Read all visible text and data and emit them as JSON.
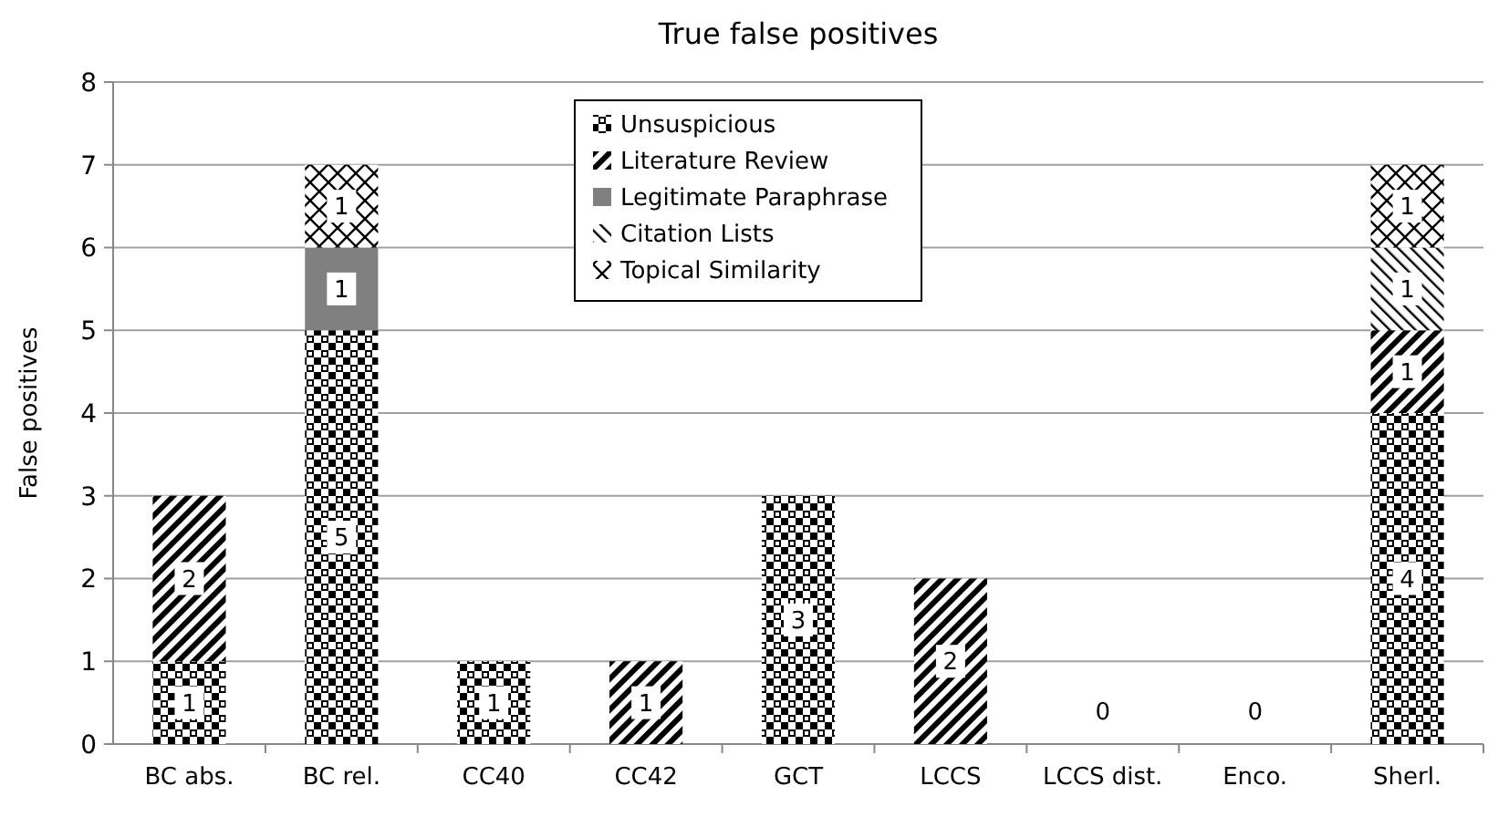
{
  "chart_data": {
    "type": "bar",
    "title": "True false positives",
    "ylabel": "False positives",
    "stacked": true,
    "data_labels": true,
    "grid": "y",
    "legend": "top",
    "categories": [
      "BC abs.",
      "BC rel.",
      "CC40",
      "CC42",
      "GCT",
      "LCCS",
      "LCCS dist.",
      "Enco.",
      "Sherl."
    ],
    "ylim": [
      0,
      8
    ],
    "yticks": [
      0,
      1,
      2,
      3,
      4,
      5,
      6,
      7,
      8
    ],
    "series": [
      {
        "name": "Unsuspicious",
        "color": "#000000",
        "values": [
          1,
          5,
          1,
          null,
          3,
          null,
          0,
          0,
          4
        ]
      },
      {
        "name": "Literature Review",
        "color": "#000000",
        "values": [
          2,
          null,
          null,
          1,
          null,
          2,
          null,
          null,
          1
        ]
      },
      {
        "name": "Legitimate Paraphrase",
        "color": "#808080",
        "values": [
          null,
          1,
          null,
          null,
          null,
          null,
          null,
          null,
          null
        ]
      },
      {
        "name": "Citation Lists",
        "color": "#000000",
        "values": [
          null,
          null,
          null,
          null,
          null,
          null,
          null,
          null,
          1
        ]
      },
      {
        "name": "Topical Similarity",
        "color": "#000000",
        "values": [
          null,
          1,
          null,
          null,
          null,
          null,
          null,
          null,
          1
        ]
      }
    ]
  }
}
